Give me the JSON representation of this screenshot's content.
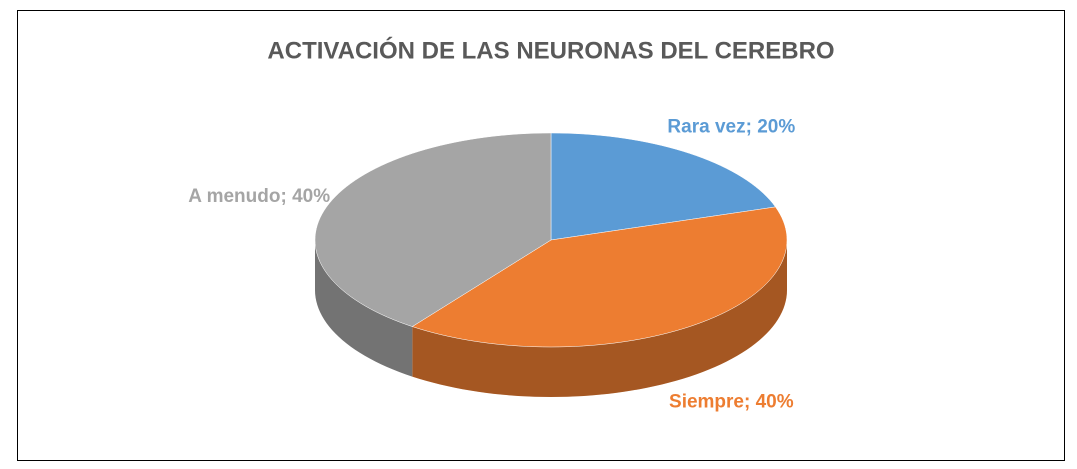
{
  "chart_data": {
    "type": "pie",
    "title": "ACTIVACIÓN DE LAS NEURONAS DEL CEREBRO",
    "categories": [
      "Rara vez",
      "Siempre",
      "A menudo"
    ],
    "values": [
      20,
      40,
      40
    ],
    "value_labels": [
      "Rara vez; 20%",
      "Siempre; 40%",
      "A menudo; 40%"
    ],
    "colors": [
      "#5b9bd5",
      "#ed7d31",
      "#a5a5a5"
    ]
  }
}
